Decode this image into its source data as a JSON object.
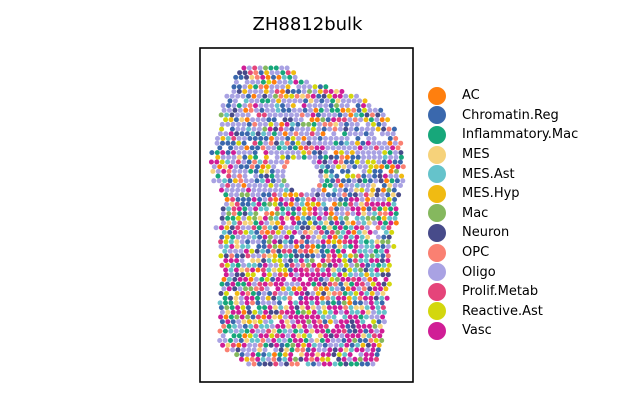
{
  "chart_data": {
    "type": "scatter",
    "title": "ZH8812bulk",
    "xlabel": "",
    "ylabel": "",
    "grid": false,
    "legend_placement": "right",
    "series": [
      {
        "name": "AC",
        "color": "#ff7f0e"
      },
      {
        "name": "Chromatin.Reg",
        "color": "#3a68ad"
      },
      {
        "name": "Inflammatory.Mac",
        "color": "#17a77a"
      },
      {
        "name": "MES",
        "color": "#f6d27a"
      },
      {
        "name": "MES.Ast",
        "color": "#65c3cb"
      },
      {
        "name": "MES.Hyp",
        "color": "#f0bb12"
      },
      {
        "name": "Mac",
        "color": "#85b85e"
      },
      {
        "name": "Neuron",
        "color": "#474b8a"
      },
      {
        "name": "OPC",
        "color": "#fa8072"
      },
      {
        "name": "Oligo",
        "color": "#a9a2e3"
      },
      {
        "name": "Prolif.Metab",
        "color": "#e5447a"
      },
      {
        "name": "Reactive.Ast",
        "color": "#d3d70e"
      },
      {
        "name": "Vasc",
        "color": "#d01d96"
      }
    ]
  }
}
